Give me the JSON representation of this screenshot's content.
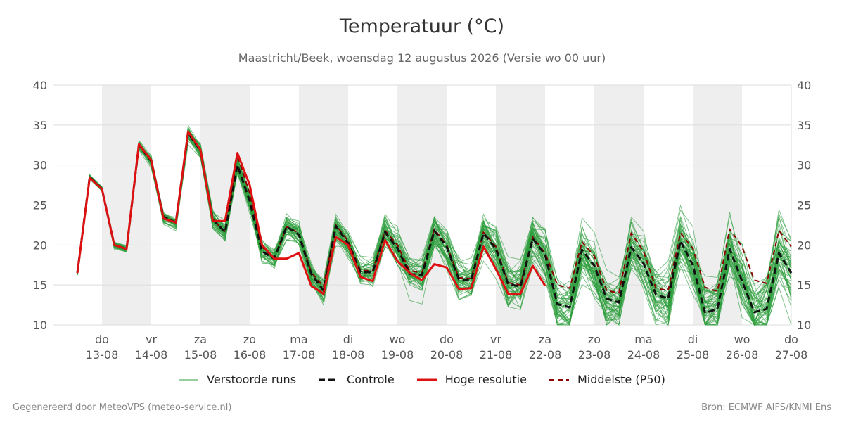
{
  "header": {
    "title": "Temperatuur (°C)",
    "subtitle": "Maastricht/Beek, woensdag 12 augustus 2026 (Versie wo 00 uur)"
  },
  "footer": {
    "left": "Gegenereerd door MeteoVPS (meteo-service.nl)",
    "right": "Bron: ECMWF AIFS/KNMI Ens"
  },
  "colors": {
    "ensemble": "#2e9e3e",
    "control": "#111111",
    "high_res": "#dd1111",
    "median": "#8b0000",
    "shade": "#eeeeee",
    "grid": "#dddddd"
  },
  "chart_data": {
    "type": "line",
    "title": "Temperatuur (°C)",
    "subtitle": "Maastricht/Beek, woensdag 12 augustus 2026 (Versie wo 00 uur)",
    "ylim": [
      10,
      40
    ],
    "yticks": [
      10,
      15,
      20,
      25,
      30,
      35,
      40
    ],
    "x_unit": "days since 12-08 00h",
    "xlim": [
      0,
      15
    ],
    "xticks": [
      {
        "day": "do",
        "date": "13-08"
      },
      {
        "day": "vr",
        "date": "14-08"
      },
      {
        "day": "za",
        "date": "15-08"
      },
      {
        "day": "zo",
        "date": "16-08"
      },
      {
        "day": "ma",
        "date": "17-08"
      },
      {
        "day": "di",
        "date": "18-08"
      },
      {
        "day": "wo",
        "date": "19-08"
      },
      {
        "day": "do",
        "date": "20-08"
      },
      {
        "day": "vr",
        "date": "21-08"
      },
      {
        "day": "za",
        "date": "22-08"
      },
      {
        "day": "zo",
        "date": "23-08"
      },
      {
        "day": "ma",
        "date": "24-08"
      },
      {
        "day": "di",
        "date": "25-08"
      },
      {
        "day": "wo",
        "date": "26-08"
      },
      {
        "day": "do",
        "date": "27-08"
      }
    ],
    "grid": true,
    "legend_position": "bottom",
    "legend": [
      {
        "key": "ensemble",
        "label": "Verstoorde runs"
      },
      {
        "key": "control",
        "label": "Controle"
      },
      {
        "key": "high_res",
        "label": "Hoge resolutie"
      },
      {
        "key": "median",
        "label": "Middelste (P50)"
      }
    ],
    "x": [
      0.5,
      0.75,
      1.0,
      1.25,
      1.5,
      1.75,
      2.0,
      2.25,
      2.5,
      2.75,
      3.0,
      3.25,
      3.5,
      3.75,
      4.0,
      4.25,
      4.5,
      4.75,
      5.0,
      5.25,
      5.5,
      5.75,
      6.0,
      6.25,
      6.5,
      6.75,
      7.0,
      7.25,
      7.5,
      7.75,
      8.0,
      8.25,
      8.5,
      8.75,
      9.0,
      9.25,
      9.5,
      9.75,
      10.0,
      10.25,
      10.5,
      10.75,
      11.0,
      11.25,
      11.5,
      11.75,
      12.0,
      12.25,
      12.5,
      12.75,
      13.0,
      13.25,
      13.5,
      13.75,
      14.0,
      14.25,
      14.5,
      14.75,
      15.0
    ],
    "series": [
      {
        "name": "Controle",
        "key": "control",
        "values": [
          16.5,
          28.5,
          27.0,
          20.0,
          19.5,
          32.5,
          30.5,
          23.5,
          22.8,
          34.0,
          31.8,
          23.2,
          21.6,
          30.0,
          25.5,
          19.2,
          18.3,
          22.3,
          21.3,
          16.4,
          14.3,
          22.4,
          20.2,
          16.6,
          16.6,
          21.6,
          19.6,
          16.4,
          16.2,
          21.8,
          19.8,
          15.7,
          15.6,
          21.5,
          19.5,
          15.1,
          14.8,
          20.8,
          18.8,
          12.6,
          12.2,
          19.4,
          17.4,
          13.3,
          12.8,
          19.7,
          17.7,
          13.8,
          13.3,
          20.5,
          17.5,
          11.5,
          12.0,
          19.5,
          15.5,
          11.6,
          12.0,
          19.0,
          16.5
        ]
      },
      {
        "name": "Hoge resolutie",
        "key": "high_res",
        "values": [
          null,
          null,
          null,
          null,
          null,
          null,
          null,
          null,
          null,
          null,
          null,
          null,
          null,
          null,
          null,
          null,
          null,
          null,
          null,
          null,
          null,
          null,
          null,
          null,
          null,
          null,
          null,
          null,
          null,
          null,
          null,
          null,
          null,
          null,
          null,
          null,
          null,
          null,
          null,
          null,
          null,
          null,
          null,
          null,
          null,
          null,
          null,
          null,
          null,
          null,
          null,
          null,
          null,
          null,
          null,
          null,
          null,
          null,
          null
        ]
      },
      {
        "name": "Middelste (P50)",
        "key": "median",
        "values": [
          16.5,
          28.5,
          27.0,
          20.0,
          19.5,
          32.5,
          30.5,
          23.5,
          22.8,
          34.0,
          31.8,
          23.2,
          21.6,
          31.2,
          26.5,
          19.8,
          18.2,
          22.3,
          21.5,
          16.6,
          14.8,
          22.5,
          20.5,
          16.8,
          16.8,
          21.8,
          20.0,
          16.8,
          16.5,
          22.0,
          20.0,
          15.9,
          15.8,
          21.6,
          19.8,
          15.3,
          15.0,
          21.0,
          19.0,
          15.0,
          14.6,
          20.4,
          18.6,
          14.3,
          14.0,
          21.5,
          19.2,
          14.6,
          14.3,
          21.5,
          19.6,
          14.7,
          14.2,
          22.0,
          19.8,
          15.6,
          15.2,
          21.8,
          19.8
        ]
      }
    ],
    "high_res": {
      "x": [
        0.5,
        0.75,
        1.0,
        1.25,
        1.5,
        1.75,
        2.0,
        2.25,
        2.5,
        2.75,
        3.0,
        3.25,
        3.5,
        3.75,
        4.0,
        4.25,
        4.5,
        4.75,
        5.0,
        5.25,
        5.5,
        5.75,
        6.0,
        6.25,
        6.5,
        6.75,
        7.0,
        7.25,
        7.5,
        7.75,
        8.0,
        8.25,
        8.5,
        8.75,
        9.0,
        9.25,
        9.5,
        9.75,
        10.0
      ],
      "values": [
        16.5,
        28.4,
        27.0,
        20.0,
        19.5,
        32.6,
        30.6,
        23.3,
        22.8,
        34.2,
        31.9,
        23.0,
        23.0,
        31.5,
        27.5,
        20.0,
        18.3,
        18.3,
        19.0,
        14.9,
        13.9,
        21.0,
        20.0,
        16.0,
        15.5,
        20.6,
        18.0,
        16.5,
        15.6,
        17.6,
        17.2,
        14.5,
        14.6,
        19.8,
        17.0,
        13.9,
        13.9,
        17.4,
        14.9
      ]
    },
    "ensemble_members": 50
  }
}
